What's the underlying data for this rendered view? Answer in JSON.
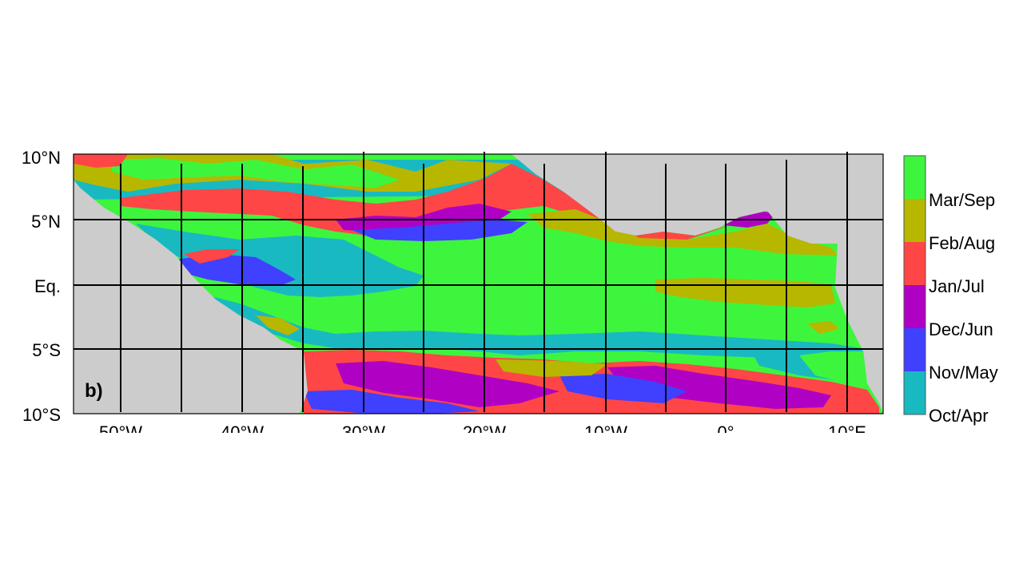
{
  "panel_label": "b)",
  "lat_ticks": [
    "10°N",
    "5°N",
    "Eq.",
    "5°S",
    "10°S"
  ],
  "lon_ticks": [
    "50°W",
    "40°W",
    "30°W",
    "20°W",
    "10°W",
    "0°",
    "10°E"
  ],
  "legend": {
    "items": [
      {
        "label": "Mar/Sep",
        "color": "#3ef53e"
      },
      {
        "label": "Feb/Aug",
        "color": "#b7b700"
      },
      {
        "label": "Jan/Jul",
        "color": "#ff4646"
      },
      {
        "label": "Dec/Jun",
        "color": "#b000c4"
      },
      {
        "label": "Nov/May",
        "color": "#4040ff"
      },
      {
        "label": "Oct/Apr",
        "color": "#19b9c2"
      }
    ]
  },
  "colors": {
    "land": "#cccccc",
    "green": "#3ef53e",
    "olive": "#b7b700",
    "red": "#ff4646",
    "magenta": "#b000c4",
    "blue": "#4040ff",
    "cyan": "#19b9c2"
  }
}
